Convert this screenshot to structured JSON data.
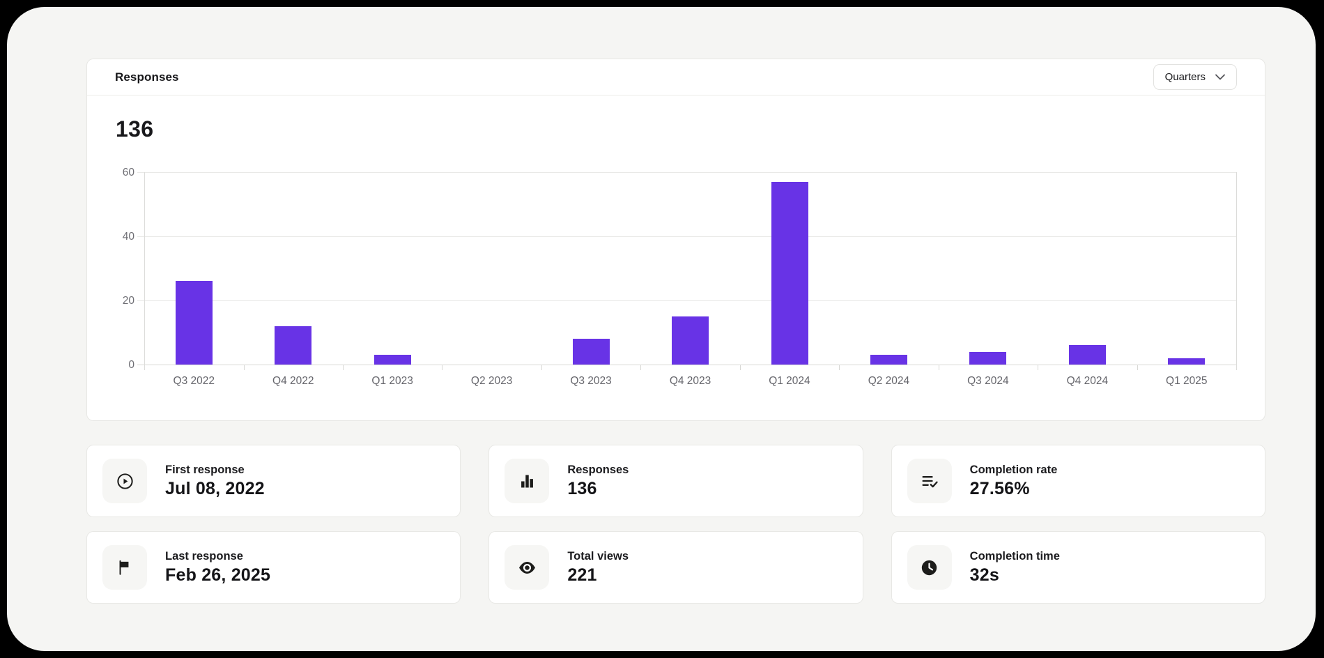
{
  "header": {
    "title": "Responses",
    "filter_label": "Quarters"
  },
  "summary": {
    "total": "136"
  },
  "chart_data": {
    "type": "bar",
    "title": "Responses",
    "categories": [
      "Q3 2022",
      "Q4 2022",
      "Q1 2023",
      "Q2 2023",
      "Q3 2023",
      "Q4 2023",
      "Q1 2024",
      "Q2 2024",
      "Q3 2024",
      "Q4 2024",
      "Q1 2025"
    ],
    "values": [
      26,
      12,
      3,
      0,
      8,
      15,
      57,
      3,
      4,
      6,
      2
    ],
    "xlabel": "",
    "ylabel": "",
    "ylim": [
      0,
      60
    ],
    "yticks": [
      0,
      20,
      40,
      60
    ],
    "grid": true,
    "legend": false,
    "bar_color": "#6833E6"
  },
  "stats": [
    {
      "id": "first-response",
      "icon": "play-circle-icon",
      "label": "First response",
      "value": "Jul 08, 2022"
    },
    {
      "id": "responses",
      "icon": "bar-chart-icon",
      "label": "Responses",
      "value": "136"
    },
    {
      "id": "completion-rate",
      "icon": "list-check-icon",
      "label": "Completion rate",
      "value": "27.56%"
    },
    {
      "id": "last-response",
      "icon": "flag-icon",
      "label": "Last response",
      "value": "Feb 26, 2025"
    },
    {
      "id": "total-views",
      "icon": "eye-icon",
      "label": "Total views",
      "value": "221"
    },
    {
      "id": "completion-time",
      "icon": "clock-icon",
      "label": "Completion time",
      "value": "32s"
    }
  ],
  "colors": {
    "accent": "#6833E6",
    "page_background": "#000000",
    "panel_background": "#f5f5f3",
    "card_background": "#ffffff",
    "axis_text": "#6e6e74"
  }
}
